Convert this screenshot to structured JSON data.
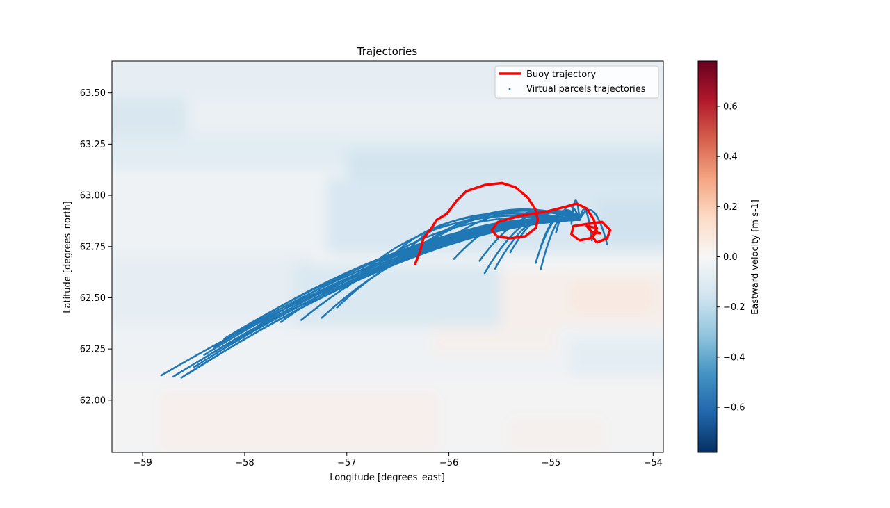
{
  "chart_data": {
    "type": "scatter",
    "title": "Trajectories",
    "xlabel": "Longitude [degrees_east]",
    "ylabel": "Latitude [degrees_north]",
    "xlim": [
      -59.3,
      -53.9
    ],
    "ylim": [
      61.745,
      63.655
    ],
    "x_ticks": [
      -59,
      -58,
      -57,
      -56,
      -55,
      -54
    ],
    "x_tick_labels": [
      "−59",
      "−58",
      "−57",
      "−56",
      "−55",
      "−54"
    ],
    "y_ticks": [
      62.0,
      62.25,
      62.5,
      62.75,
      63.0,
      63.25,
      63.5
    ],
    "y_tick_labels": [
      "62.00",
      "62.25",
      "62.50",
      "62.75",
      "63.00",
      "63.25",
      "63.50"
    ],
    "grid": false,
    "legend": {
      "position": "top-right",
      "entries": [
        "Buoy trajectory",
        "Virtual parcels trajectories"
      ]
    },
    "colorbar": {
      "label": "Eastward velocity [m s-1]",
      "range": [
        -0.78,
        0.78
      ],
      "ticks": [
        -0.6,
        -0.4,
        -0.2,
        0.0,
        0.2,
        0.4,
        0.6
      ],
      "tick_labels": [
        "−0.6",
        "−0.4",
        "−0.2",
        "0.0",
        "0.2",
        "0.4",
        "0.6"
      ],
      "colormap": "RdBu_r"
    },
    "background_field": {
      "description": "eastward velocity field",
      "value_range": [
        -0.2,
        0.05
      ]
    },
    "series": [
      {
        "name": "Buoy trajectory",
        "kind": "line",
        "color": "#ff0000",
        "points": [
          [
            -56.33,
            62.665
          ],
          [
            -56.28,
            62.73
          ],
          [
            -56.25,
            62.79
          ],
          [
            -56.17,
            62.84
          ],
          [
            -56.12,
            62.88
          ],
          [
            -56.02,
            62.91
          ],
          [
            -55.93,
            62.97
          ],
          [
            -55.83,
            63.02
          ],
          [
            -55.65,
            63.05
          ],
          [
            -55.48,
            63.06
          ],
          [
            -55.35,
            63.04
          ],
          [
            -55.23,
            62.99
          ],
          [
            -55.15,
            62.93
          ],
          [
            -55.13,
            62.88
          ],
          [
            -55.15,
            62.84
          ],
          [
            -55.25,
            62.8
          ],
          [
            -55.4,
            62.79
          ],
          [
            -55.53,
            62.8
          ],
          [
            -55.58,
            62.83
          ],
          [
            -55.52,
            62.87
          ],
          [
            -55.3,
            62.9
          ],
          [
            -55.05,
            62.92
          ],
          [
            -54.85,
            62.945
          ],
          [
            -54.75,
            62.96
          ],
          [
            -54.65,
            62.935
          ],
          [
            -54.58,
            62.88
          ],
          [
            -54.55,
            62.82
          ],
          [
            -54.62,
            62.79
          ],
          [
            -54.72,
            62.78
          ],
          [
            -54.8,
            62.81
          ],
          [
            -54.78,
            62.85
          ],
          [
            -54.65,
            62.86
          ],
          [
            -54.5,
            62.87
          ],
          [
            -54.42,
            62.83
          ],
          [
            -54.45,
            62.79
          ],
          [
            -54.55,
            62.77
          ],
          [
            -54.6,
            62.8
          ],
          [
            -54.55,
            62.84
          ],
          [
            -54.65,
            62.85
          ],
          [
            -54.6,
            62.82
          ],
          [
            -54.52,
            62.815
          ]
        ]
      },
      {
        "name": "Virtual parcels trajectories",
        "kind": "scatter",
        "color": "#1f77b4",
        "start": [
          -54.72,
          62.88
        ],
        "end_points": [
          [
            -58.82,
            62.12
          ],
          [
            -58.7,
            62.115
          ],
          [
            -58.62,
            62.11
          ],
          [
            -58.55,
            62.13
          ],
          [
            -58.5,
            62.16
          ],
          [
            -58.45,
            62.19
          ],
          [
            -58.4,
            62.22
          ],
          [
            -58.3,
            62.26
          ],
          [
            -58.2,
            62.3
          ],
          [
            -58.05,
            62.34
          ],
          [
            -57.85,
            62.37
          ],
          [
            -57.65,
            62.38
          ],
          [
            -57.45,
            62.39
          ],
          [
            -57.25,
            62.4
          ],
          [
            -57.1,
            62.45
          ],
          [
            -57.0,
            62.55
          ],
          [
            -56.85,
            62.62
          ],
          [
            -56.6,
            62.68
          ],
          [
            -56.45,
            62.7
          ],
          [
            -56.35,
            62.72
          ],
          [
            -56.2,
            62.78
          ],
          [
            -56.1,
            62.75
          ],
          [
            -55.95,
            62.69
          ],
          [
            -55.7,
            62.68
          ],
          [
            -55.65,
            62.62
          ],
          [
            -55.55,
            62.64
          ],
          [
            -55.4,
            62.72
          ],
          [
            -55.15,
            62.67
          ],
          [
            -55.1,
            62.64
          ],
          [
            -55.1,
            62.75
          ],
          [
            -54.95,
            62.82
          ],
          [
            -54.8,
            62.86
          ],
          [
            -54.6,
            62.78
          ],
          [
            -54.45,
            62.76
          ]
        ]
      }
    ]
  }
}
